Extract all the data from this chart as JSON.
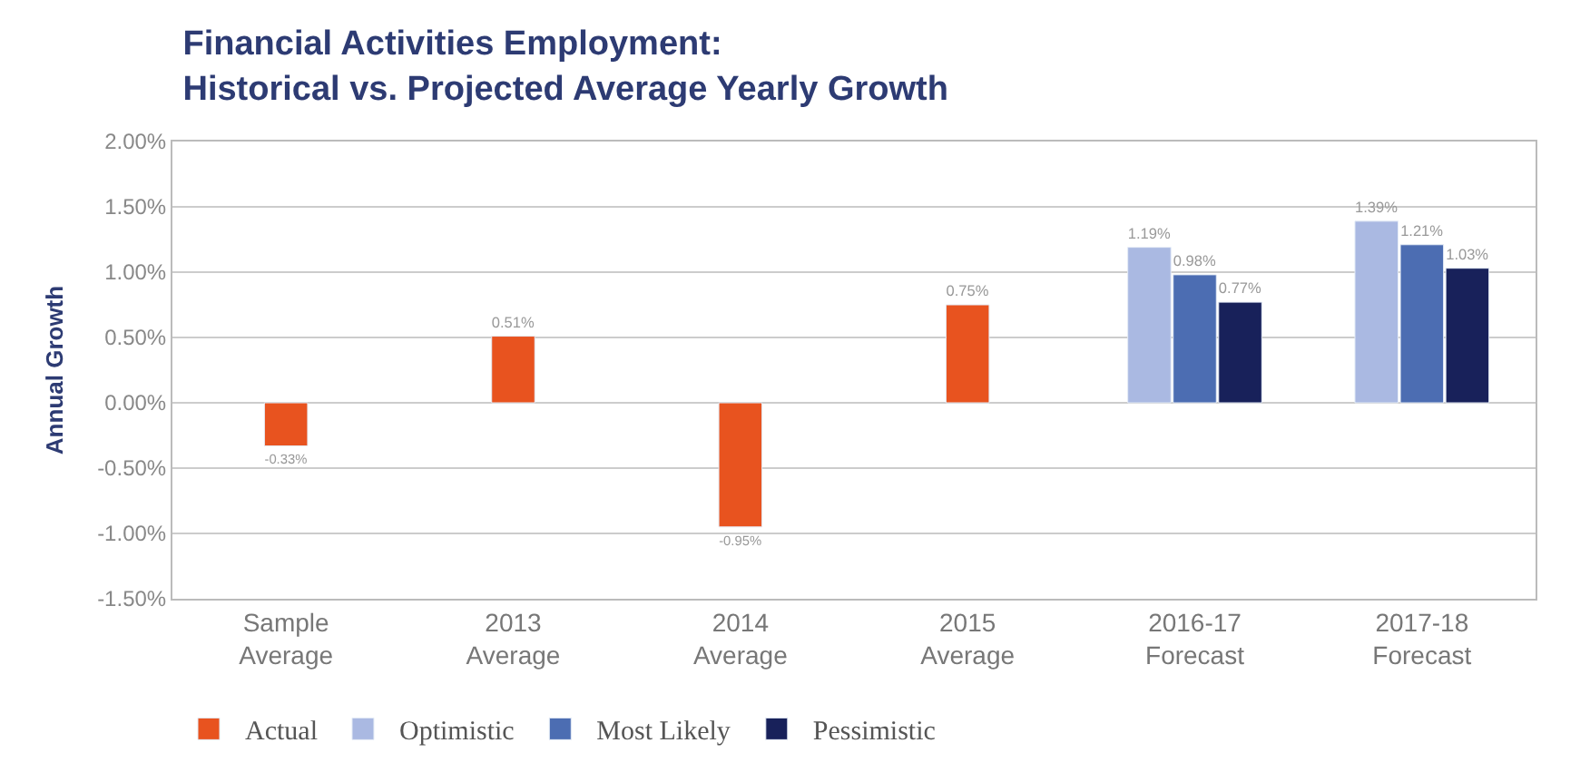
{
  "chart_data": {
    "type": "bar",
    "title": "Financial Activities Employment:\nHistorical vs. Projected Average Yearly Growth",
    "ylabel": "Annual Growth",
    "categories": [
      "Sample\nAverage",
      "2013\nAverage",
      "2014\nAverage",
      "2015\nAverage",
      "2016-17\nForecast",
      "2017-18\nForecast"
    ],
    "series": [
      {
        "name": "Actual",
        "color": "#e8531f",
        "values": [
          -0.33,
          0.51,
          -0.95,
          0.75,
          null,
          null
        ],
        "value_labels": [
          "-0.33%",
          "0.51%",
          "-0.95%",
          "0.75%",
          null,
          null
        ]
      },
      {
        "name": "Optimistic",
        "color": "#aab9e2",
        "values": [
          null,
          null,
          null,
          null,
          1.19,
          1.39
        ],
        "value_labels": [
          null,
          null,
          null,
          null,
          "1.19%",
          "1.39%"
        ]
      },
      {
        "name": "Most Likely",
        "color": "#4c6db2",
        "values": [
          null,
          null,
          null,
          null,
          0.98,
          1.21
        ],
        "value_labels": [
          null,
          null,
          null,
          null,
          "0.98%",
          "1.21%"
        ]
      },
      {
        "name": "Pessimistic",
        "color": "#18215a",
        "values": [
          null,
          null,
          null,
          null,
          0.77,
          1.03
        ],
        "value_labels": [
          null,
          null,
          null,
          null,
          "0.77%",
          "1.03%"
        ]
      }
    ],
    "ylim": [
      -1.5,
      2.0
    ],
    "yticks": [
      {
        "value": -1.5,
        "label": "-1.50%"
      },
      {
        "value": -1.0,
        "label": "-1.00%"
      },
      {
        "value": -0.5,
        "label": "-0.50%"
      },
      {
        "value": 0,
        "label": "0.00%"
      },
      {
        "value": 0.5,
        "label": "0.50%"
      },
      {
        "value": 1.0,
        "label": "1.00%"
      },
      {
        "value": 1.5,
        "label": "1.50%"
      },
      {
        "value": 2.0,
        "label": "2.00%"
      }
    ],
    "grid": "y",
    "legend": "bottom left"
  }
}
